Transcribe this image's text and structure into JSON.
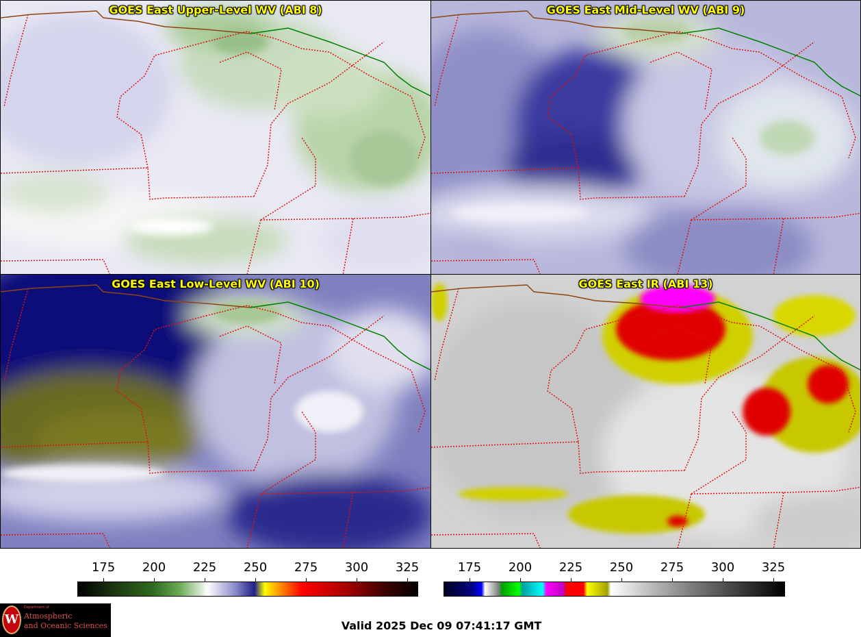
{
  "panels": [
    {
      "title": "GOES East Upper-Level WV (ABI 8)",
      "scheme": "wv-upper"
    },
    {
      "title": "GOES East Mid-Level WV (ABI 9)",
      "scheme": "wv-mid"
    },
    {
      "title": "GOES East Low-Level WV (ABI 10)",
      "scheme": "wv-low"
    },
    {
      "title": "GOES East IR (ABI 13)",
      "scheme": "ir"
    }
  ],
  "colorbar_left": {
    "ticks": [
      "175",
      "200",
      "225",
      "250",
      "275",
      "300",
      "325"
    ]
  },
  "colorbar_right": {
    "ticks": [
      "175",
      "200",
      "225",
      "250",
      "275",
      "300",
      "325"
    ]
  },
  "logo": {
    "department": "Department of",
    "line1": "Atmospheric",
    "line2": "and Oceanic Sciences",
    "seal_letter": "W"
  },
  "valid_time": "Valid 2025 Dec 09 07:41:17 GMT",
  "colors": {
    "state_border": "#dd1111",
    "international_border": "#008000",
    "coast": "#8b4513",
    "title_text": "#ffff00"
  }
}
